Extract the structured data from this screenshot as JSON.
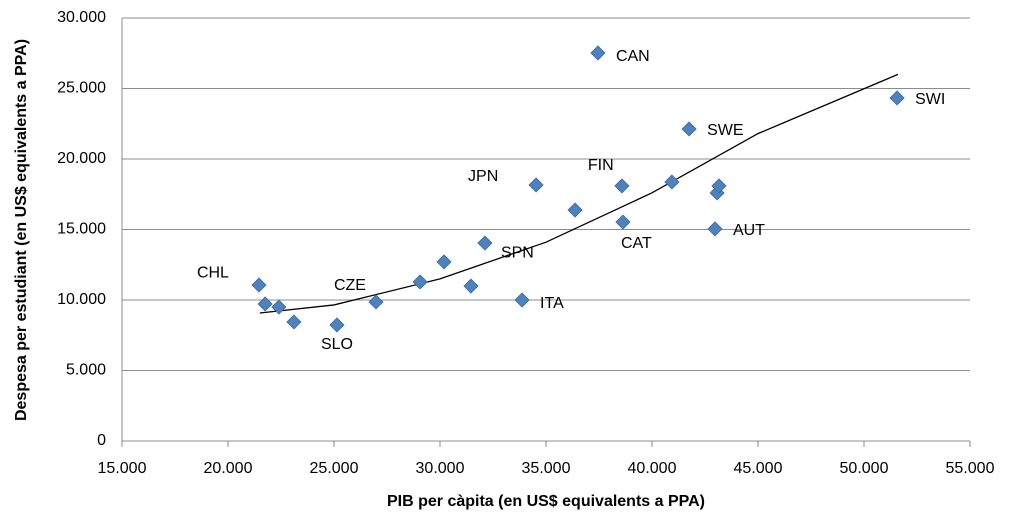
{
  "chart_data": {
    "type": "scatter",
    "x_label": "PIB per càpita (en US$ equivalents a PPA)",
    "y_label": "Despesa per estudiant (en US$ equivalents a PPA)",
    "xlim": [
      15000,
      55000
    ],
    "xticks": [
      {
        "value": 15000,
        "label": "15.000"
      },
      {
        "value": 20000,
        "label": "20.000"
      },
      {
        "value": 25000,
        "label": "25.000"
      },
      {
        "value": 30000,
        "label": "30.000"
      },
      {
        "value": 35000,
        "label": "35.000"
      },
      {
        "value": 40000,
        "label": "40.000"
      },
      {
        "value": 45000,
        "label": "45.000"
      },
      {
        "value": 50000,
        "label": "50.000"
      },
      {
        "value": 55000,
        "label": "55.000"
      }
    ],
    "ylim": [
      0,
      30000
    ],
    "yticks": [
      0,
      {
        "value": 5000,
        "label": "5.000"
      },
      {
        "value": 10000,
        "label": "10.000"
      },
      {
        "value": 15000,
        "label": "15.000"
      },
      {
        "value": 20000,
        "label": "20.000"
      },
      {
        "value": 25000,
        "label": "25.000"
      },
      {
        "value": 30000,
        "label": "30.000"
      }
    ],
    "grid": true,
    "color": "#4f81bd",
    "x": [
      21460,
      21750,
      22400,
      23110,
      25140,
      26980,
      29060,
      30190,
      31460,
      32120,
      33870,
      34530,
      36370,
      37450,
      38580,
      38630,
      40940,
      41750,
      42970,
      43070,
      43160,
      51560
    ],
    "values": [
      11060,
      9720,
      9500,
      8440,
      8230,
      9860,
      11280,
      12700,
      10990,
      14040,
      10000,
      18160,
      16380,
      27520,
      18090,
      15530,
      18370,
      22130,
      15040,
      17590,
      18090,
      24330
    ],
    "point_labels": [
      "CHL",
      null,
      null,
      null,
      "SLO",
      "CZE",
      null,
      null,
      null,
      "SPN",
      "ITA",
      "JPN",
      null,
      "CAN",
      "FIN",
      "CAT",
      null,
      "SWE",
      "AUT",
      null,
      null,
      "SWI"
    ],
    "trendline": {
      "color": "#000000",
      "x": [
        21500,
        25000,
        30000,
        35000,
        40000,
        45000,
        51600
      ],
      "values": [
        9080,
        9650,
        11500,
        14100,
        17600,
        21800,
        26000
      ]
    }
  }
}
